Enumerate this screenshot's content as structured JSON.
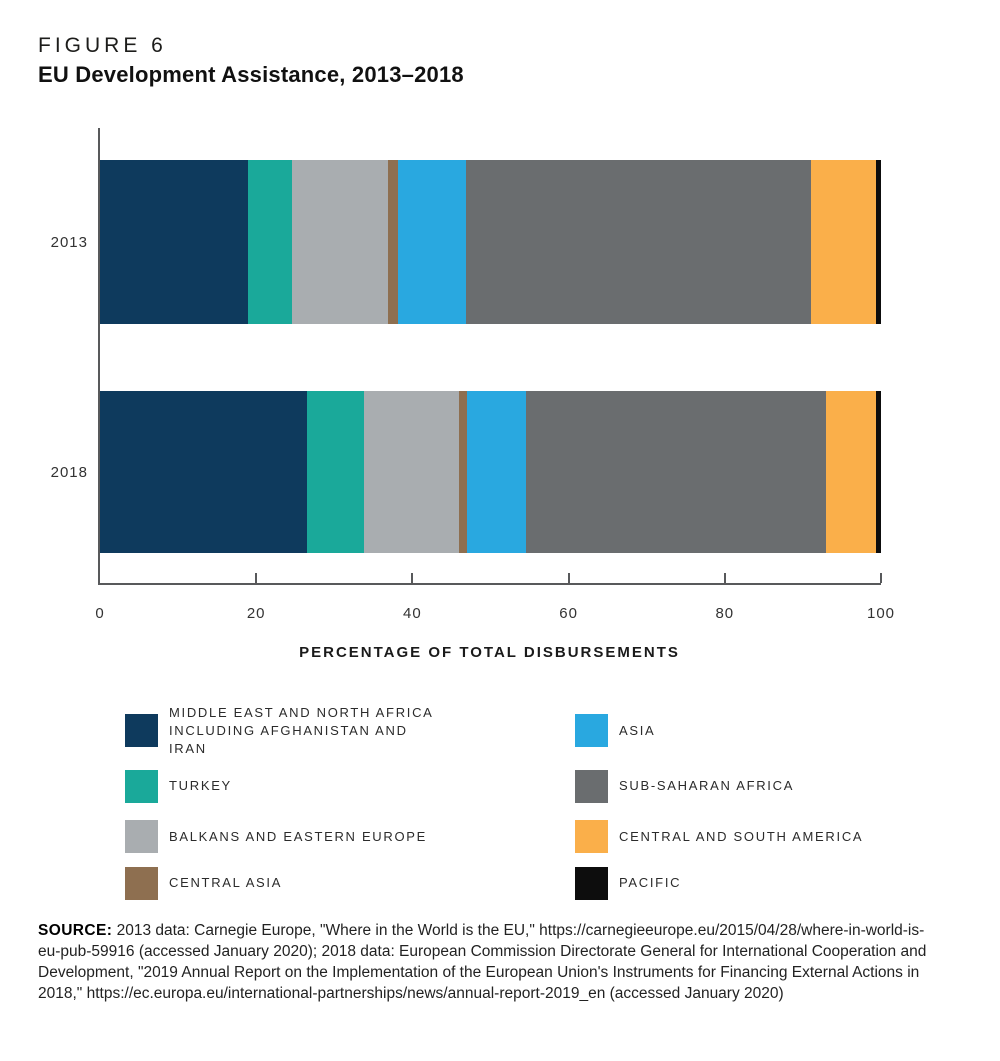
{
  "figure": {
    "label": "FIGURE 6",
    "title": "EU Development Assistance, 2013–2018"
  },
  "chart_data": {
    "type": "bar",
    "subtype": "horizontal-stacked",
    "unit": "percent of total disbursements",
    "rows": [
      "2013",
      "2018"
    ],
    "xlabel": "PERCENTAGE OF TOTAL DISBURSEMENTS",
    "xlim": [
      0,
      100
    ],
    "xticks": [
      0,
      20,
      40,
      60,
      80,
      100
    ],
    "grid": false,
    "legend_position": "bottom-two-columns",
    "series": [
      {
        "name": "MIDDLE EAST AND NORTH AFRICA INCLUDING AFGHANISTAN AND IRAN",
        "color": "#0E3A5D",
        "values": [
          19.0,
          26.5
        ]
      },
      {
        "name": "TURKEY",
        "color": "#1AA99A",
        "values": [
          5.6,
          7.3
        ]
      },
      {
        "name": "BALKANS AND EASTERN EUROPE",
        "color": "#A9ADB0",
        "values": [
          12.3,
          12.2
        ]
      },
      {
        "name": "CENTRAL ASIA",
        "color": "#8E6F50",
        "values": [
          1.2,
          1.0
        ]
      },
      {
        "name": "ASIA",
        "color": "#29A8E0",
        "values": [
          8.8,
          7.6
        ]
      },
      {
        "name": "SUB-SAHARAN AFRICA",
        "color": "#6A6D6F",
        "values": [
          44.2,
          38.4
        ]
      },
      {
        "name": "CENTRAL AND SOUTH AMERICA",
        "color": "#FAAF4A",
        "values": [
          8.3,
          6.4
        ]
      },
      {
        "name": "PACIFIC",
        "color": "#0D0D0D",
        "values": [
          0.6,
          0.6
        ]
      }
    ]
  },
  "axis_color": "#58595B",
  "source": {
    "prefix": "SOURCE:",
    "text": "2013 data: Carnegie Europe, \"Where in the World is the EU,\" https://carnegieeurope.eu/2015/04/28/where-in-world-is-eu-pub-59916 (accessed January 2020); 2018 data: European Commission Directorate General for International Cooperation and Development, \"2019 Annual Report on the Implementation of the European Union's Instruments for Financing External Actions in 2018,\" https://ec.europa.eu/international-partnerships/news/annual-report-2019_en (accessed January 2020)"
  }
}
